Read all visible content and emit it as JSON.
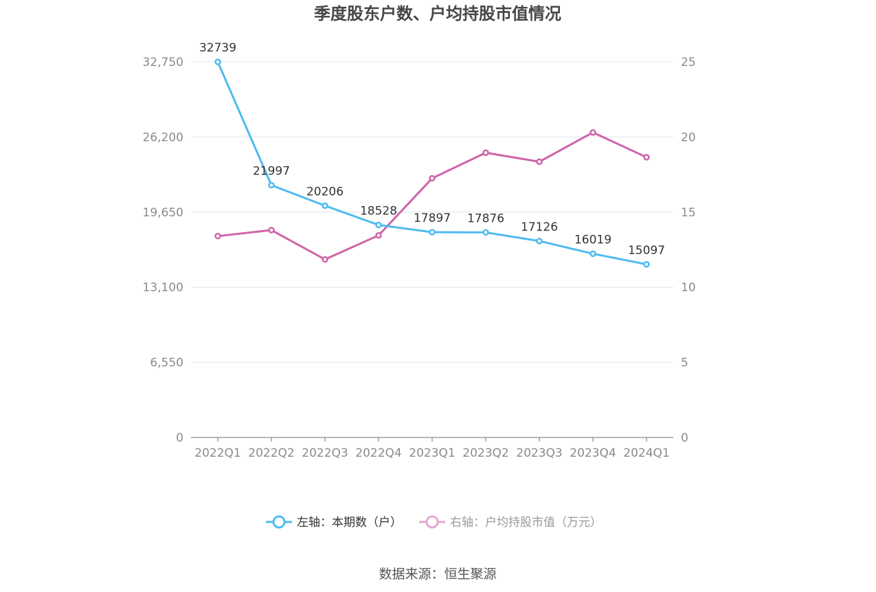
{
  "colors": {
    "series_left": "#4ebbf0",
    "series_right": "#cf64a8",
    "legend_right_muted": "#e6a6d0",
    "grid": "#e1e4ee",
    "axis": "#707070",
    "tick_text": "#8a8a8a",
    "title_text": "#464646"
  },
  "chart_data": {
    "type": "line",
    "title": "季度股东户数、户均持股市值情况",
    "categories": [
      "2022Q1",
      "2022Q2",
      "2022Q3",
      "2022Q4",
      "2023Q1",
      "2023Q2",
      "2023Q3",
      "2023Q4",
      "2024Q1"
    ],
    "y_left": {
      "ylim": [
        0,
        32750
      ],
      "ticks": [
        "0",
        "6,550",
        "13,100",
        "19,650",
        "26,200",
        "32,750"
      ]
    },
    "y_right": {
      "ylim": [
        0,
        25
      ],
      "ticks": [
        "0",
        "5",
        "10",
        "15",
        "20",
        "25"
      ]
    },
    "grid": true,
    "legend_position": "bottom",
    "series": [
      {
        "name": "左轴：本期数（户）",
        "axis": "left",
        "values": [
          32739,
          21997,
          20206,
          18528,
          17897,
          17876,
          17126,
          16019,
          15097
        ],
        "labels": [
          "32739",
          "21997",
          "20206",
          "18528",
          "17897",
          "17876",
          "17126",
          "16019",
          "15097"
        ]
      },
      {
        "name": "右轴：户均持股市值（万元）",
        "axis": "right",
        "values": [
          13.4,
          13.8,
          11.85,
          13.45,
          17.25,
          18.95,
          18.35,
          20.3,
          18.65
        ]
      }
    ],
    "source": "数据来源：恒生聚源"
  }
}
